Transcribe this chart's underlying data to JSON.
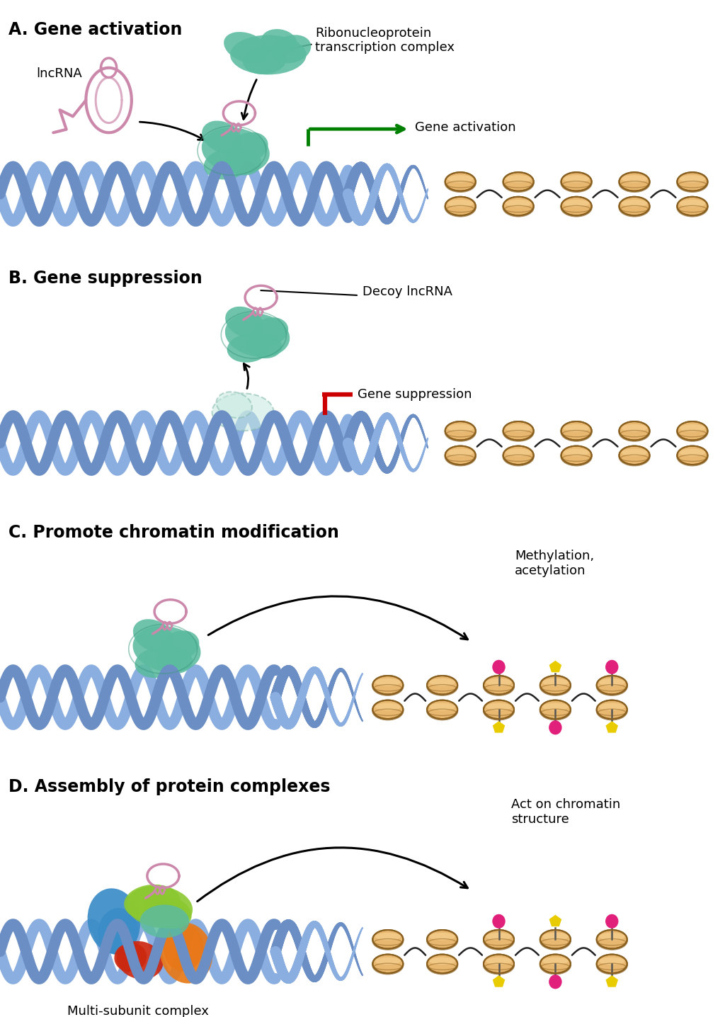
{
  "panel_A": {
    "label": "A. Gene activation",
    "lncRNA_label": "lncRNA",
    "complex_label": "Ribonucleoprotein\ntranscription complex",
    "activation_label": "Gene activation"
  },
  "panel_B": {
    "label": "B. Gene suppression",
    "decoy_label": "Decoy lncRNA",
    "suppression_label": "Gene suppression"
  },
  "panel_C": {
    "label": "C. Promote chromatin modification",
    "methylation_label": "Methylation,\nacetylation"
  },
  "panel_D": {
    "label": "D. Assembly of protein complexes",
    "chromatin_label": "Act on chromatin\nstructure",
    "complex_label": "Multi-subunit complex"
  },
  "dna_color1": "#6b8fc4",
  "dna_color2": "#8aaee0",
  "dna_inner": "#c8d8ef",
  "histone_main": "#e8b870",
  "histone_top": "#f5d090",
  "histone_edge": "#8a6020",
  "protein_teal": "#5bbb9e",
  "protein_teal_dark": "#3a9a7e",
  "rna_pink": "#cc88aa",
  "mark_pink": "#e0207a",
  "mark_yellow": "#e8cc00",
  "green_arrow": "#008000",
  "red_inhibit": "#cc0000",
  "protein_blue": "#3a8dc8",
  "protein_green": "#8bc830",
  "protein_red": "#cc2810",
  "protein_orange": "#e87818",
  "bg_color": "#ffffff",
  "text_color": "#000000",
  "label_fontsize": 17,
  "annot_fontsize": 13
}
